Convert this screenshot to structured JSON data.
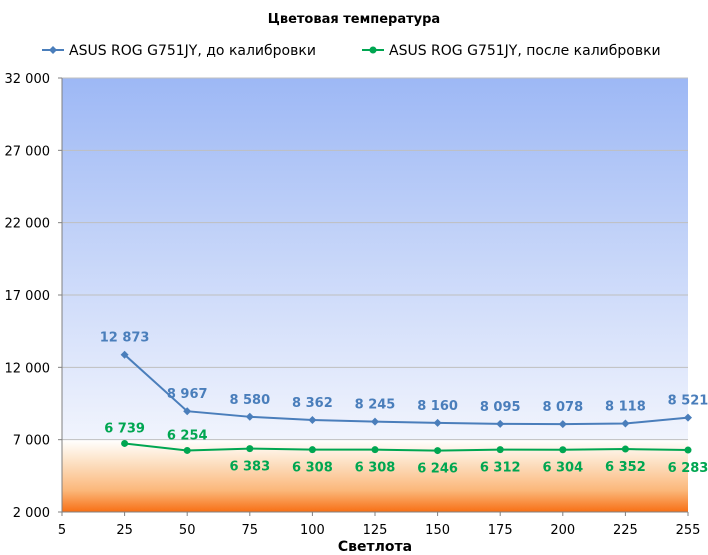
{
  "chart_data": {
    "type": "line",
    "title": "Цветовая температура",
    "xlabel": "Светлота",
    "ylabel": "",
    "x": [
      25,
      50,
      75,
      100,
      125,
      150,
      175,
      200,
      225,
      255
    ],
    "x_ticks": [
      "5",
      "25",
      "50",
      "75",
      "100",
      "125",
      "150",
      "175",
      "200",
      "225",
      "255"
    ],
    "y_ticks": [
      "2 000",
      "7 000",
      "12 000",
      "17 000",
      "22 000",
      "27 000",
      "32 000"
    ],
    "ylim": [
      2000,
      32000
    ],
    "grid": "horizontal",
    "legend_position": "top",
    "series": [
      {
        "name": "ASUS ROG G751JY, до калибровки",
        "color": "#4a7ebb",
        "marker": "diamond",
        "values": [
          12873,
          8967,
          8580,
          8362,
          8245,
          8160,
          8095,
          8078,
          8118,
          8521
        ],
        "labels": [
          "12 873",
          "8 967",
          "8 580",
          "8 362",
          "8 245",
          "8 160",
          "8 095",
          "8 078",
          "8 118",
          "8 521"
        ]
      },
      {
        "name": "ASUS ROG G751JY, после калибровки",
        "color": "#00a651",
        "marker": "circle",
        "values": [
          6739,
          6254,
          6383,
          6308,
          6308,
          6246,
          6312,
          6304,
          6352,
          6283
        ],
        "labels": [
          "6 739",
          "6 254",
          "6 383",
          "6 308",
          "6 308",
          "6 246",
          "6 312",
          "6 304",
          "6 352",
          "6 283"
        ]
      }
    ]
  }
}
